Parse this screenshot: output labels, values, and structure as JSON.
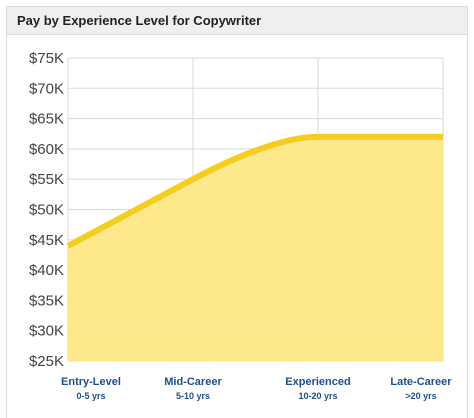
{
  "header": {
    "title": "Pay by Experience Level for Copywriter"
  },
  "colors": {
    "line": "#f5cd1e",
    "fill": "#fde680",
    "grid": "#d9d9d9",
    "axis_label": "#1d4f91"
  },
  "chart_data": {
    "type": "area",
    "title": "Pay by Experience Level for Copywriter",
    "xlabel": "",
    "ylabel": "",
    "ylim": [
      25000,
      75000
    ],
    "yticks": [
      25000,
      30000,
      35000,
      40000,
      45000,
      50000,
      55000,
      60000,
      65000,
      70000,
      75000
    ],
    "ytick_labels": [
      "$25K",
      "$30K",
      "$35K",
      "$40K",
      "$45K",
      "$50K",
      "$55K",
      "$60K",
      "$65K",
      "$70K",
      "$75K"
    ],
    "categories": [
      "Entry-Level",
      "Mid-Career",
      "Experienced",
      "Late-Career"
    ],
    "category_sublabels": [
      "0-5 yrs",
      "5-10 yrs",
      "10-20 yrs",
      ">20 yrs"
    ],
    "values": [
      44000,
      55000,
      62000,
      62000
    ],
    "grid": true,
    "legend": "none"
  }
}
